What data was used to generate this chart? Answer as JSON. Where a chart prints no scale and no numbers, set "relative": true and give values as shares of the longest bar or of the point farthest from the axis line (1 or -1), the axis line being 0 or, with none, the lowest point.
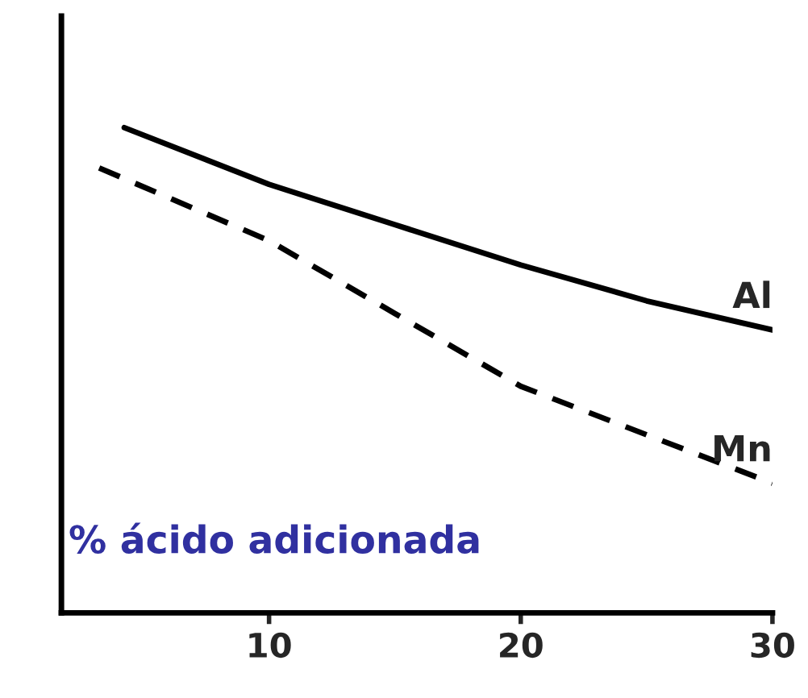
{
  "chart_data": {
    "type": "line",
    "relative": true,
    "x": [
      4.25,
      10,
      15,
      20,
      25,
      30
    ],
    "xlim": [
      1.75,
      30
    ],
    "xticks": [
      10,
      20,
      30
    ],
    "series": [
      {
        "name": "Al",
        "color": "#000000",
        "line_style": "solid",
        "values": [
          1,
          0.883,
          0.8,
          0.717,
          0.643,
          0.583
        ]
      },
      {
        "name": "Mn",
        "color": "#000000",
        "line_style": "dashed",
        "x": [
          3.25,
          10,
          15,
          20,
          25,
          30
        ],
        "values": [
          0.917,
          0.767,
          0.617,
          0.467,
          0.367,
          0.267
        ]
      }
    ],
    "annotations": [
      "% ácido adicionada"
    ]
  }
}
